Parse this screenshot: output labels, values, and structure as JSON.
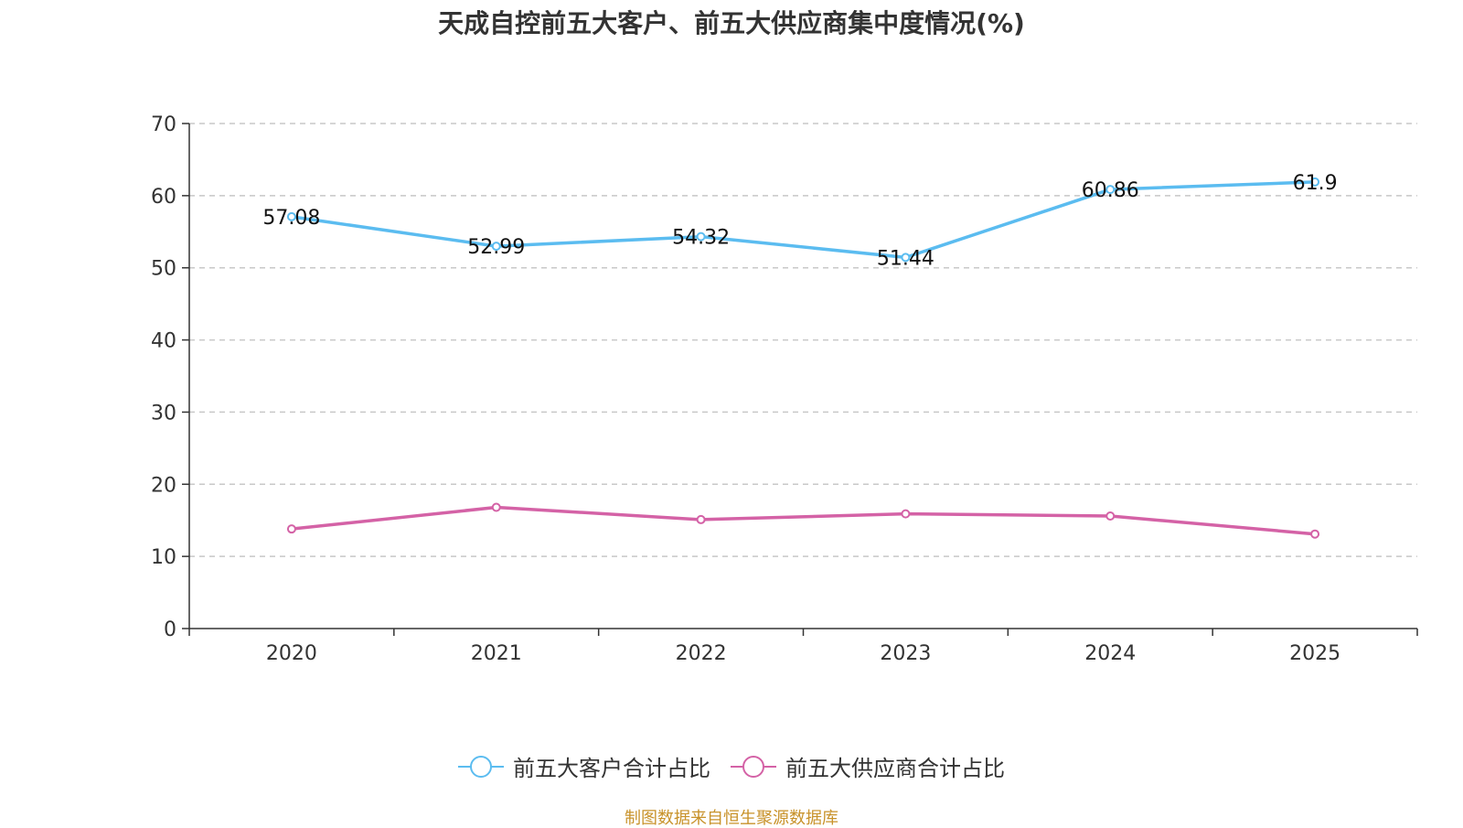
{
  "chart_data": {
    "type": "line",
    "title": "天成自控前五大客户、前五大供应商集中度情况(%)",
    "categories": [
      "2020",
      "2021",
      "2022",
      "2023",
      "2024",
      "2025"
    ],
    "ylim": [
      0,
      70
    ],
    "yticks": [
      0,
      10,
      20,
      30,
      40,
      50,
      60,
      70
    ],
    "grid": true,
    "legend_position": "bottom",
    "series": [
      {
        "name": "前五大客户合计占比",
        "color": "#5bbcf0",
        "values": [
          57.08,
          52.99,
          54.32,
          51.44,
          60.86,
          61.9
        ],
        "labels": [
          "57.08",
          "52.99",
          "54.32",
          "51.44",
          "60.86",
          "61.9"
        ]
      },
      {
        "name": "前五大供应商合计占比",
        "color": "#d462a6",
        "values": [
          13.8,
          16.8,
          15.1,
          15.9,
          15.6,
          13.1
        ]
      }
    ]
  },
  "footer": {
    "source": "制图数据来自恒生聚源数据库"
  }
}
